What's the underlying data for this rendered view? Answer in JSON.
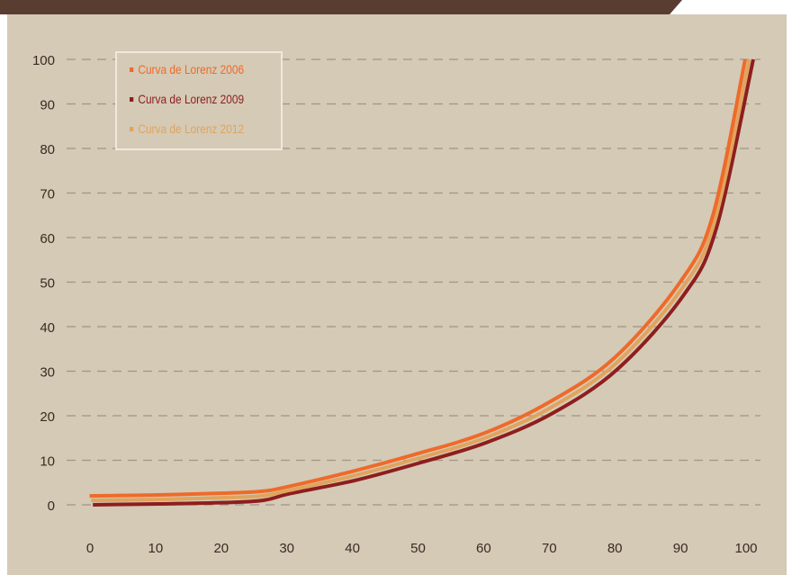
{
  "chart_data": {
    "type": "line",
    "title": "",
    "xlabel": "",
    "ylabel": "",
    "xlim": [
      0,
      100
    ],
    "ylim": [
      0,
      100
    ],
    "x_ticks": [
      "0",
      "10",
      "20",
      "30",
      "40",
      "50",
      "60",
      "70",
      "80",
      "90",
      "100"
    ],
    "y_ticks": [
      "0",
      "10",
      "20",
      "30",
      "40",
      "50",
      "60",
      "70",
      "80",
      "90",
      "100"
    ],
    "grid": "horizontal-dashed",
    "legend_position": "top-left",
    "series": [
      {
        "name": "Curva de Lorenz 2006",
        "color": "#ef6a2a",
        "x": [
          0,
          10,
          20,
          26,
          30,
          40,
          50,
          60,
          70,
          80,
          90,
          95,
          100
        ],
        "y": [
          2,
          2.2,
          2.6,
          3,
          4,
          7.5,
          11.5,
          16,
          23,
          33,
          50,
          65,
          100
        ]
      },
      {
        "name": "Curva de Lorenz 2009",
        "color": "#8e1e1e",
        "x": [
          0,
          10,
          20,
          26,
          30,
          40,
          50,
          60,
          70,
          80,
          90,
          95,
          100
        ],
        "y": [
          0,
          0.2,
          0.5,
          1,
          2.5,
          5.5,
          9.5,
          14,
          20.5,
          30.5,
          47,
          62,
          100
        ]
      },
      {
        "name": "Curva de Lorenz 2012",
        "color": "#e0a45e",
        "x": [
          0,
          10,
          20,
          26,
          30,
          40,
          50,
          60,
          70,
          80,
          90,
          95,
          100
        ],
        "y": [
          1,
          1.2,
          1.6,
          2,
          3.2,
          6.5,
          10.5,
          15,
          21.8,
          31.8,
          48.5,
          63.5,
          100
        ]
      }
    ]
  }
}
